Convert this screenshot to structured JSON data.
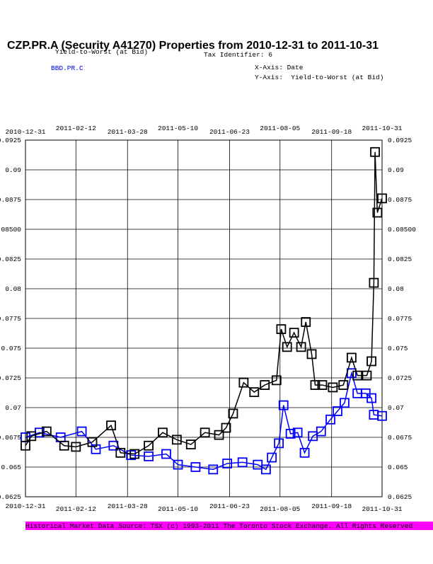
{
  "chart_data": {
    "type": "line",
    "title": "CZP.PR.A (Security A41270) Properties from 2010-12-31 to 2011-10-31",
    "tax_identifier": "Tax Identifier: 6",
    "x_axis_note": "X-Axis: Date",
    "y_axis_note": "Y-Axis:  Yield-to-Worst (at Bid)",
    "source": "Historical Market Data Source: TSX (c) 1993-2011 The Toronto Stock Exchange. All Rights Reserved",
    "xlim": [
      "2010-12-31",
      "2011-10-31"
    ],
    "xticks": [
      "2010-12-31",
      "2011-02-12",
      "2011-03-28",
      "2011-05-10",
      "2011-06-23",
      "2011-08-05",
      "2011-09-18",
      "2011-10-31"
    ],
    "ylim": [
      0.0625,
      0.0925
    ],
    "yticks": [
      0.0625,
      0.065,
      0.0675,
      0.07,
      0.0725,
      0.075,
      0.0775,
      0.08,
      0.0825,
      {
        "value": 0.085,
        "label": "0.08500"
      },
      0.0875,
      0.09,
      0.0925
    ],
    "grid": true,
    "series": [
      {
        "name": "Yield-to-Worst (at Bid)",
        "color": "#000000",
        "x": [
          "2010-12-31",
          "2011-01-05",
          "2011-01-18",
          "2011-02-02",
          "2011-02-12",
          "2011-02-26",
          "2011-03-14",
          "2011-03-22",
          "2011-04-03",
          "2011-04-15",
          "2011-04-27",
          "2011-05-09",
          "2011-05-21",
          "2011-06-02",
          "2011-06-14",
          "2011-06-20",
          "2011-06-26",
          "2011-07-05",
          "2011-07-14",
          "2011-07-23",
          "2011-08-02",
          "2011-08-06",
          "2011-08-11",
          "2011-08-17",
          "2011-08-23",
          "2011-08-27",
          "2011-09-01",
          "2011-09-04",
          "2011-09-10",
          "2011-09-19",
          "2011-09-28",
          "2011-10-05",
          "2011-10-10",
          "2011-10-18",
          "2011-10-22",
          "2011-10-24",
          "2011-10-25",
          "2011-10-27",
          "2011-10-31"
        ],
        "values": [
          0.0668,
          0.0676,
          0.068,
          0.0668,
          0.0667,
          0.0671,
          0.0685,
          0.0662,
          0.0661,
          0.0668,
          0.0679,
          0.0673,
          0.0669,
          0.0679,
          0.0677,
          0.0683,
          0.0695,
          0.0721,
          0.0713,
          0.0719,
          0.0723,
          0.0766,
          0.0751,
          0.0763,
          0.0751,
          0.0772,
          0.0745,
          0.0719,
          0.0719,
          0.0717,
          0.0719,
          0.0742,
          0.0727,
          0.0727,
          0.0739,
          0.0805,
          0.0915,
          0.0864,
          0.0876
        ]
      },
      {
        "name": "BBD.PR.C",
        "color": "#0000ff",
        "x": [
          "2010-12-31",
          "2011-01-12",
          "2011-01-30",
          "2011-02-17",
          "2011-03-01",
          "2011-03-16",
          "2011-03-31",
          "2011-04-15",
          "2011-04-30",
          "2011-05-10",
          "2011-05-25",
          "2011-06-09",
          "2011-06-21",
          "2011-07-04",
          "2011-07-17",
          "2011-07-24",
          "2011-07-29",
          "2011-08-04",
          "2011-08-08",
          "2011-08-14",
          "2011-08-20",
          "2011-08-26",
          "2011-09-02",
          "2011-09-09",
          "2011-09-17",
          "2011-09-23",
          "2011-09-29",
          "2011-10-05",
          "2011-10-10",
          "2011-10-17",
          "2011-10-22",
          "2011-10-24",
          "2011-10-31"
        ],
        "values": [
          0.0675,
          0.0679,
          0.0675,
          0.068,
          0.0665,
          0.0668,
          0.066,
          0.0659,
          0.0661,
          0.0652,
          0.065,
          0.0648,
          0.0653,
          0.0654,
          0.0652,
          0.0648,
          0.0658,
          0.067,
          0.0702,
          0.0678,
          0.0679,
          0.0662,
          0.0676,
          0.068,
          0.069,
          0.0697,
          0.0704,
          0.0729,
          0.0712,
          0.0712,
          0.0708,
          0.0694,
          0.0693
        ]
      }
    ]
  }
}
